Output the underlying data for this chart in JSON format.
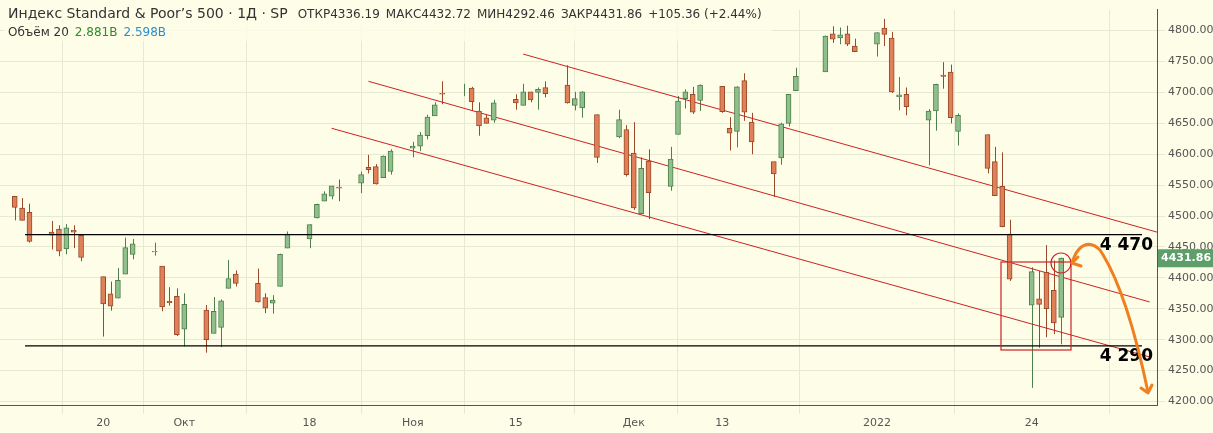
{
  "chart_data": {
    "type": "candlestick",
    "title": "Индекс Standard & Poor’s 500 · 1Д · SP",
    "annotations": [
      "ОТКР4336.19",
      "МАКС4432.72",
      "МИН4292.46",
      "ЗАКР4431.86",
      "+105.36 (+2.44%)",
      "Объём 20",
      "2.881B",
      "2.598B",
      "4431.86"
    ],
    "x": [
      "2021-09-08",
      "2021-09-09",
      "2021-09-10",
      "2021-09-13",
      "2021-09-14",
      "2021-09-15",
      "2021-09-16",
      "2021-09-17",
      "2021-09-20",
      "2021-09-21",
      "2021-09-22",
      "2021-09-23",
      "2021-09-24",
      "2021-09-27",
      "2021-09-28",
      "2021-09-29",
      "2021-09-30",
      "2021-10-01",
      "2021-10-04",
      "2021-10-05",
      "2021-10-06",
      "2021-10-07",
      "2021-10-08",
      "2021-10-11",
      "2021-10-12",
      "2021-10-13",
      "2021-10-14",
      "2021-10-15",
      "2021-10-18",
      "2021-10-19",
      "2021-10-20",
      "2021-10-21",
      "2021-10-22",
      "2021-10-25",
      "2021-10-26",
      "2021-10-27",
      "2021-10-28",
      "2021-10-29",
      "2021-11-01",
      "2021-11-02",
      "2021-11-03",
      "2021-11-04",
      "2021-11-05",
      "2021-11-08",
      "2021-11-09",
      "2021-11-10",
      "2021-11-11",
      "2021-11-12",
      "2021-11-15",
      "2021-11-16",
      "2021-11-17",
      "2021-11-18",
      "2021-11-19",
      "2021-11-22",
      "2021-11-23",
      "2021-11-24",
      "2021-11-26",
      "2021-11-29",
      "2021-11-30",
      "2021-12-01",
      "2021-12-02",
      "2021-12-03",
      "2021-12-06",
      "2021-12-07",
      "2021-12-08",
      "2021-12-09",
      "2021-12-10",
      "2021-12-13",
      "2021-12-14",
      "2021-12-15",
      "2021-12-16",
      "2021-12-17",
      "2021-12-20",
      "2021-12-21",
      "2021-12-22",
      "2021-12-23",
      "2021-12-27",
      "2021-12-28",
      "2021-12-29",
      "2021-12-30",
      "2021-12-31",
      "2022-01-03",
      "2022-01-04",
      "2022-01-05",
      "2022-01-06",
      "2022-01-07",
      "2022-01-10",
      "2022-01-11",
      "2022-01-12",
      "2022-01-13",
      "2022-01-14",
      "2022-01-18",
      "2022-01-19",
      "2022-01-20",
      "2022-01-21",
      "2022-01-24",
      "2022-01-25",
      "2022-01-26",
      "2022-01-27",
      "2022-01-28"
    ],
    "ohlc": [
      [
        4532,
        4532,
        4493,
        4514
      ],
      [
        4513,
        4529,
        4493,
        4493
      ],
      [
        4506,
        4520,
        4457,
        4459
      ],
      [
        4474,
        4492,
        4446,
        4469
      ],
      [
        4479,
        4485,
        4435,
        4443
      ],
      [
        4447,
        4487,
        4438,
        4481
      ],
      [
        4477,
        4485,
        4448,
        4474
      ],
      [
        4469,
        4471,
        4427,
        4433
      ],
      [
        4402,
        4402,
        4305,
        4358
      ],
      [
        4374,
        4394,
        4347,
        4354
      ],
      [
        4367,
        4416,
        4367,
        4396
      ],
      [
        4406,
        4465,
        4406,
        4449
      ],
      [
        4438,
        4463,
        4430,
        4455
      ],
      [
        4442,
        4457,
        4436,
        4443
      ],
      [
        4419,
        4419,
        4346,
        4353
      ],
      [
        4362,
        4385,
        4355,
        4360
      ],
      [
        4370,
        4383,
        4306,
        4308
      ],
      [
        4317,
        4375,
        4289,
        4357
      ],
      [
        4348,
        4356,
        4279,
        4300
      ],
      [
        4310,
        4369,
        4310,
        4346
      ],
      [
        4320,
        4365,
        4288,
        4363
      ],
      [
        4383,
        4429,
        4383,
        4399
      ],
      [
        4406,
        4412,
        4386,
        4391
      ],
      [
        4391,
        4415,
        4360,
        4361
      ],
      [
        4368,
        4375,
        4343,
        4351
      ],
      [
        4359,
        4372,
        4342,
        4364
      ],
      [
        4386,
        4439,
        4386,
        4438
      ],
      [
        4448,
        4475,
        4448,
        4471
      ],
      [
        4463,
        4487,
        4448,
        4486
      ],
      [
        4497,
        4520,
        4496,
        4519
      ],
      [
        4524,
        4540,
        4524,
        4536
      ],
      [
        4532,
        4549,
        4527,
        4549
      ],
      [
        4547,
        4559,
        4524,
        4545
      ],
      [
        4553,
        4572,
        4537,
        4567
      ],
      [
        4579,
        4599,
        4569,
        4575
      ],
      [
        4580,
        4584,
        4551,
        4552
      ],
      [
        4562,
        4598,
        4562,
        4597
      ],
      [
        4572,
        4608,
        4567,
        4605
      ],
      [
        4610,
        4620,
        4595,
        4613
      ],
      [
        4613,
        4636,
        4605,
        4631
      ],
      [
        4630,
        4664,
        4624,
        4660
      ],
      [
        4662,
        4684,
        4662,
        4680
      ],
      [
        4699,
        4718,
        4681,
        4697
      ],
      [
        4702,
        4714,
        4694,
        4702
      ],
      [
        4707,
        4709,
        4670,
        4685
      ],
      [
        4670,
        4684,
        4630,
        4646
      ],
      [
        4659,
        4664,
        4650,
        4650
      ],
      [
        4655,
        4688,
        4651,
        4683
      ],
      [
        4689,
        4697,
        4672,
        4683
      ],
      [
        4679,
        4714,
        4679,
        4701
      ],
      [
        4701,
        4701,
        4684,
        4688
      ],
      [
        4700,
        4708,
        4672,
        4705
      ],
      [
        4708,
        4718,
        4692,
        4698
      ],
      [
        4712,
        4744,
        4682,
        4683
      ],
      [
        4679,
        4701,
        4671,
        4690
      ],
      [
        4675,
        4702,
        4659,
        4701
      ],
      [
        4664,
        4664,
        4586,
        4595
      ],
      [
        4628,
        4672,
        4626,
        4656
      ],
      [
        4640,
        4647,
        4564,
        4567
      ],
      [
        4602,
        4652,
        4510,
        4513
      ],
      [
        4504,
        4595,
        4504,
        4577
      ],
      [
        4589,
        4608,
        4495,
        4538
      ],
      [
        4548,
        4612,
        4541,
        4592
      ],
      [
        4632,
        4694,
        4632,
        4686
      ],
      [
        4690,
        4705,
        4674,
        4701
      ],
      [
        4697,
        4709,
        4665,
        4668
      ],
      [
        4687,
        4713,
        4670,
        4712
      ],
      [
        4710,
        4710,
        4667,
        4669
      ],
      [
        4642,
        4660,
        4606,
        4634
      ],
      [
        4637,
        4710,
        4611,
        4709
      ],
      [
        4719,
        4731,
        4654,
        4668
      ],
      [
        4652,
        4667,
        4600,
        4620
      ],
      [
        4588,
        4588,
        4531,
        4568
      ],
      [
        4594,
        4651,
        4583,
        4649
      ],
      [
        4650,
        4697,
        4645,
        4697
      ],
      [
        4703,
        4740,
        4703,
        4726
      ],
      [
        4733,
        4792,
        4733,
        4791
      ],
      [
        4795,
        4807,
        4780,
        4786
      ],
      [
        4788,
        4805,
        4778,
        4793
      ],
      [
        4795,
        4808,
        4775,
        4778
      ],
      [
        4775,
        4787,
        4766,
        4766
      ],
      [
        4778,
        4797,
        4758,
        4797
      ],
      [
        4804,
        4819,
        4775,
        4794
      ],
      [
        4788,
        4798,
        4699,
        4701
      ],
      [
        4693,
        4725,
        4671,
        4696
      ],
      [
        4697,
        4708,
        4663,
        4677
      ],
      [
        4655,
        4673,
        4582,
        4670
      ],
      [
        4670,
        4714,
        4638,
        4713
      ],
      [
        4728,
        4749,
        4706,
        4726
      ],
      [
        4733,
        4745,
        4650,
        4659
      ],
      [
        4637,
        4666,
        4614,
        4663
      ],
      [
        4632,
        4632,
        4569,
        4577
      ],
      [
        4588,
        4612,
        4533,
        4533
      ],
      [
        4548,
        4603,
        4482,
        4483
      ],
      [
        4471,
        4494,
        4395,
        4398
      ],
      [
        4356,
        4417,
        4222,
        4410
      ],
      [
        4366,
        4411,
        4287,
        4357
      ],
      [
        4409,
        4453,
        4304,
        4350
      ],
      [
        4380,
        4428,
        4309,
        4327
      ],
      [
        4336.19,
        4432.72,
        4292.46,
        4431.86
      ]
    ],
    "series": [
      {
        "type": "line",
        "color": "#cc2222",
        "x": [
          "2021-11-16",
          "2022-02-10"
        ],
        "values": [
          4762,
          4474
        ]
      },
      {
        "type": "line",
        "color": "#cc2222",
        "x": [
          "2021-10-26",
          "2022-02-09"
        ],
        "values": [
          4718,
          4361
        ]
      },
      {
        "type": "line",
        "color": "#cc2222",
        "x": [
          "2021-10-21",
          "2022-02-09"
        ],
        "values": [
          4642,
          4272
        ]
      }
    ],
    "ref_lines": [
      {
        "axis": "y",
        "value": 4470,
        "label": "4 470",
        "color": "#000000"
      },
      {
        "axis": "y",
        "value": 4290,
        "label": "4 290",
        "color": "#000000"
      }
    ],
    "xlim": [
      "2021-09-06",
      "2022-02-10"
    ],
    "xticks": [
      {
        "value": "2021-09-20",
        "label": "20"
      },
      {
        "value": "2021-10-01",
        "label": "Окт"
      },
      {
        "value": "2021-10-18",
        "label": "18"
      },
      {
        "value": "2021-11-01",
        "label": "Ноя"
      },
      {
        "value": "2021-11-15",
        "label": "15"
      },
      {
        "value": "2021-12-01",
        "label": "Дек"
      },
      {
        "value": "2021-12-13",
        "label": "13"
      },
      {
        "value": "2022-01-03",
        "label": "2022"
      },
      {
        "value": "2022-01-24",
        "label": "24"
      }
    ],
    "ylim": [
      4193,
      4834
    ],
    "yticks": [
      {
        "value": 4200,
        "label": "4200.00"
      },
      {
        "value": 4250,
        "label": "4250.00"
      },
      {
        "value": 4300,
        "label": "4300.00"
      },
      {
        "value": 4350,
        "label": "4350.00"
      },
      {
        "value": 4400,
        "label": "4400.00"
      },
      {
        "value": 4450,
        "label": "4450.00"
      },
      {
        "value": 4500,
        "label": "4500.00"
      },
      {
        "value": 4550,
        "label": "4550.00"
      },
      {
        "value": 4600,
        "label": "4600.00"
      },
      {
        "value": 4650,
        "label": "4650.00"
      },
      {
        "value": 4700,
        "label": "4700.00"
      },
      {
        "value": 4750,
        "label": "4750.00"
      },
      {
        "value": 4800,
        "label": "4800.00"
      }
    ],
    "grid": true,
    "legend": false
  }
}
